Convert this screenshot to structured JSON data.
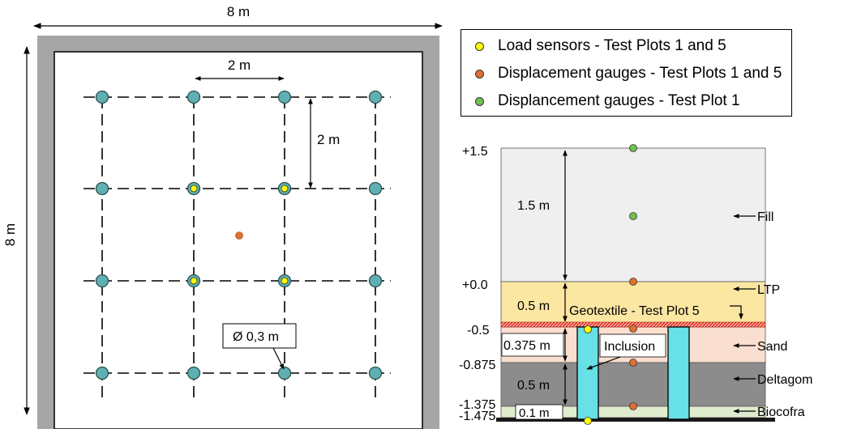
{
  "plan_view": {
    "overall_width_label": "8 m",
    "overall_height_label": "8 m",
    "spacing_x_label": "2 m",
    "spacing_y_label": "2 m",
    "diameter_label": "Ø 0,3 m",
    "colors": {
      "wall": "#a6a6a6",
      "pile_fill": "#5fb0b3",
      "pile_stroke": "#2f4f4f",
      "load_sensor": "#ffff00",
      "displacement_gauge": "#e07030"
    }
  },
  "legend": {
    "items": [
      {
        "label": "Load sensors - Test Plots 1 and 5",
        "color": "#ffff00"
      },
      {
        "label": "Displacement gauges - Test Plots 1 and 5",
        "color": "#e07030"
      },
      {
        "label": "Displancement gauges - Test Plot 1",
        "color": "#70c050"
      }
    ]
  },
  "section": {
    "layers": [
      {
        "name": "Fill",
        "thickness_label": "1.5 m",
        "color": "#efefef"
      },
      {
        "name": "LTP",
        "thickness_label": "0.5 m",
        "color": "#fbe6a2"
      },
      {
        "name": "Sand",
        "thickness_label": "0.375 m",
        "color": "#fadfd0"
      },
      {
        "name": "Deltagom",
        "thickness_label": "0.5 m",
        "color": "#8c8c8c"
      },
      {
        "name": "Biocofra",
        "thickness_label": "0.1 m",
        "color": "#dfeccd"
      }
    ],
    "elevations": [
      "+1.5",
      "+0.0",
      "-0.5",
      "-0.875",
      "-1.375",
      "-1.475"
    ],
    "geotextile_label": "Geotextile - Test Plot 5",
    "inclusion_label": "Inclusion",
    "inclusion_color": "#67e0e6",
    "geotextile_color": "#e8392a"
  }
}
